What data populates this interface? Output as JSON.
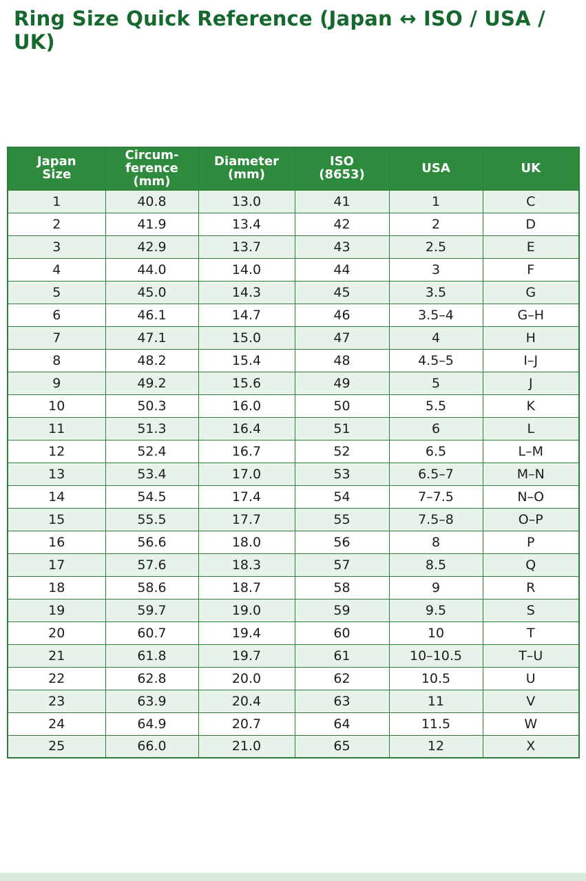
{
  "page": {
    "title": "Ring Size Quick Reference (Japan ↔ ISO / USA / UK)"
  },
  "colors": {
    "title_text": "#15682e",
    "header_bg": "#2e8b3d",
    "header_text": "#ffffff",
    "row_alt_bg": "#e7f3ea",
    "border": "#2e7d3a",
    "footer_strip": "#d8ecd9"
  },
  "table": {
    "columns": [
      "Japan\nSize",
      "Circum-\nference\n(mm)",
      "Diameter\n(mm)",
      "ISO\n(8653)",
      "USA",
      "UK"
    ],
    "rows": [
      [
        "1",
        "40.8",
        "13.0",
        "41",
        "1",
        "C"
      ],
      [
        "2",
        "41.9",
        "13.4",
        "42",
        "2",
        "D"
      ],
      [
        "3",
        "42.9",
        "13.7",
        "43",
        "2.5",
        "E"
      ],
      [
        "4",
        "44.0",
        "14.0",
        "44",
        "3",
        "F"
      ],
      [
        "5",
        "45.0",
        "14.3",
        "45",
        "3.5",
        "G"
      ],
      [
        "6",
        "46.1",
        "14.7",
        "46",
        "3.5–4",
        "G–H"
      ],
      [
        "7",
        "47.1",
        "15.0",
        "47",
        "4",
        "H"
      ],
      [
        "8",
        "48.2",
        "15.4",
        "48",
        "4.5–5",
        "I–J"
      ],
      [
        "9",
        "49.2",
        "15.6",
        "49",
        "5",
        "J"
      ],
      [
        "10",
        "50.3",
        "16.0",
        "50",
        "5.5",
        "K"
      ],
      [
        "11",
        "51.3",
        "16.4",
        "51",
        "6",
        "L"
      ],
      [
        "12",
        "52.4",
        "16.7",
        "52",
        "6.5",
        "L–M"
      ],
      [
        "13",
        "53.4",
        "17.0",
        "53",
        "6.5–7",
        "M–N"
      ],
      [
        "14",
        "54.5",
        "17.4",
        "54",
        "7–7.5",
        "N–O"
      ],
      [
        "15",
        "55.5",
        "17.7",
        "55",
        "7.5–8",
        "O–P"
      ],
      [
        "16",
        "56.6",
        "18.0",
        "56",
        "8",
        "P"
      ],
      [
        "17",
        "57.6",
        "18.3",
        "57",
        "8.5",
        "Q"
      ],
      [
        "18",
        "58.6",
        "18.7",
        "58",
        "9",
        "R"
      ],
      [
        "19",
        "59.7",
        "19.0",
        "59",
        "9.5",
        "S"
      ],
      [
        "20",
        "60.7",
        "19.4",
        "60",
        "10",
        "T"
      ],
      [
        "21",
        "61.8",
        "19.7",
        "61",
        "10–10.5",
        "T–U"
      ],
      [
        "22",
        "62.8",
        "20.0",
        "62",
        "10.5",
        "U"
      ],
      [
        "23",
        "63.9",
        "20.4",
        "63",
        "11",
        "V"
      ],
      [
        "24",
        "64.9",
        "20.7",
        "64",
        "11.5",
        "W"
      ],
      [
        "25",
        "66.0",
        "21.0",
        "65",
        "12",
        "X"
      ]
    ]
  }
}
